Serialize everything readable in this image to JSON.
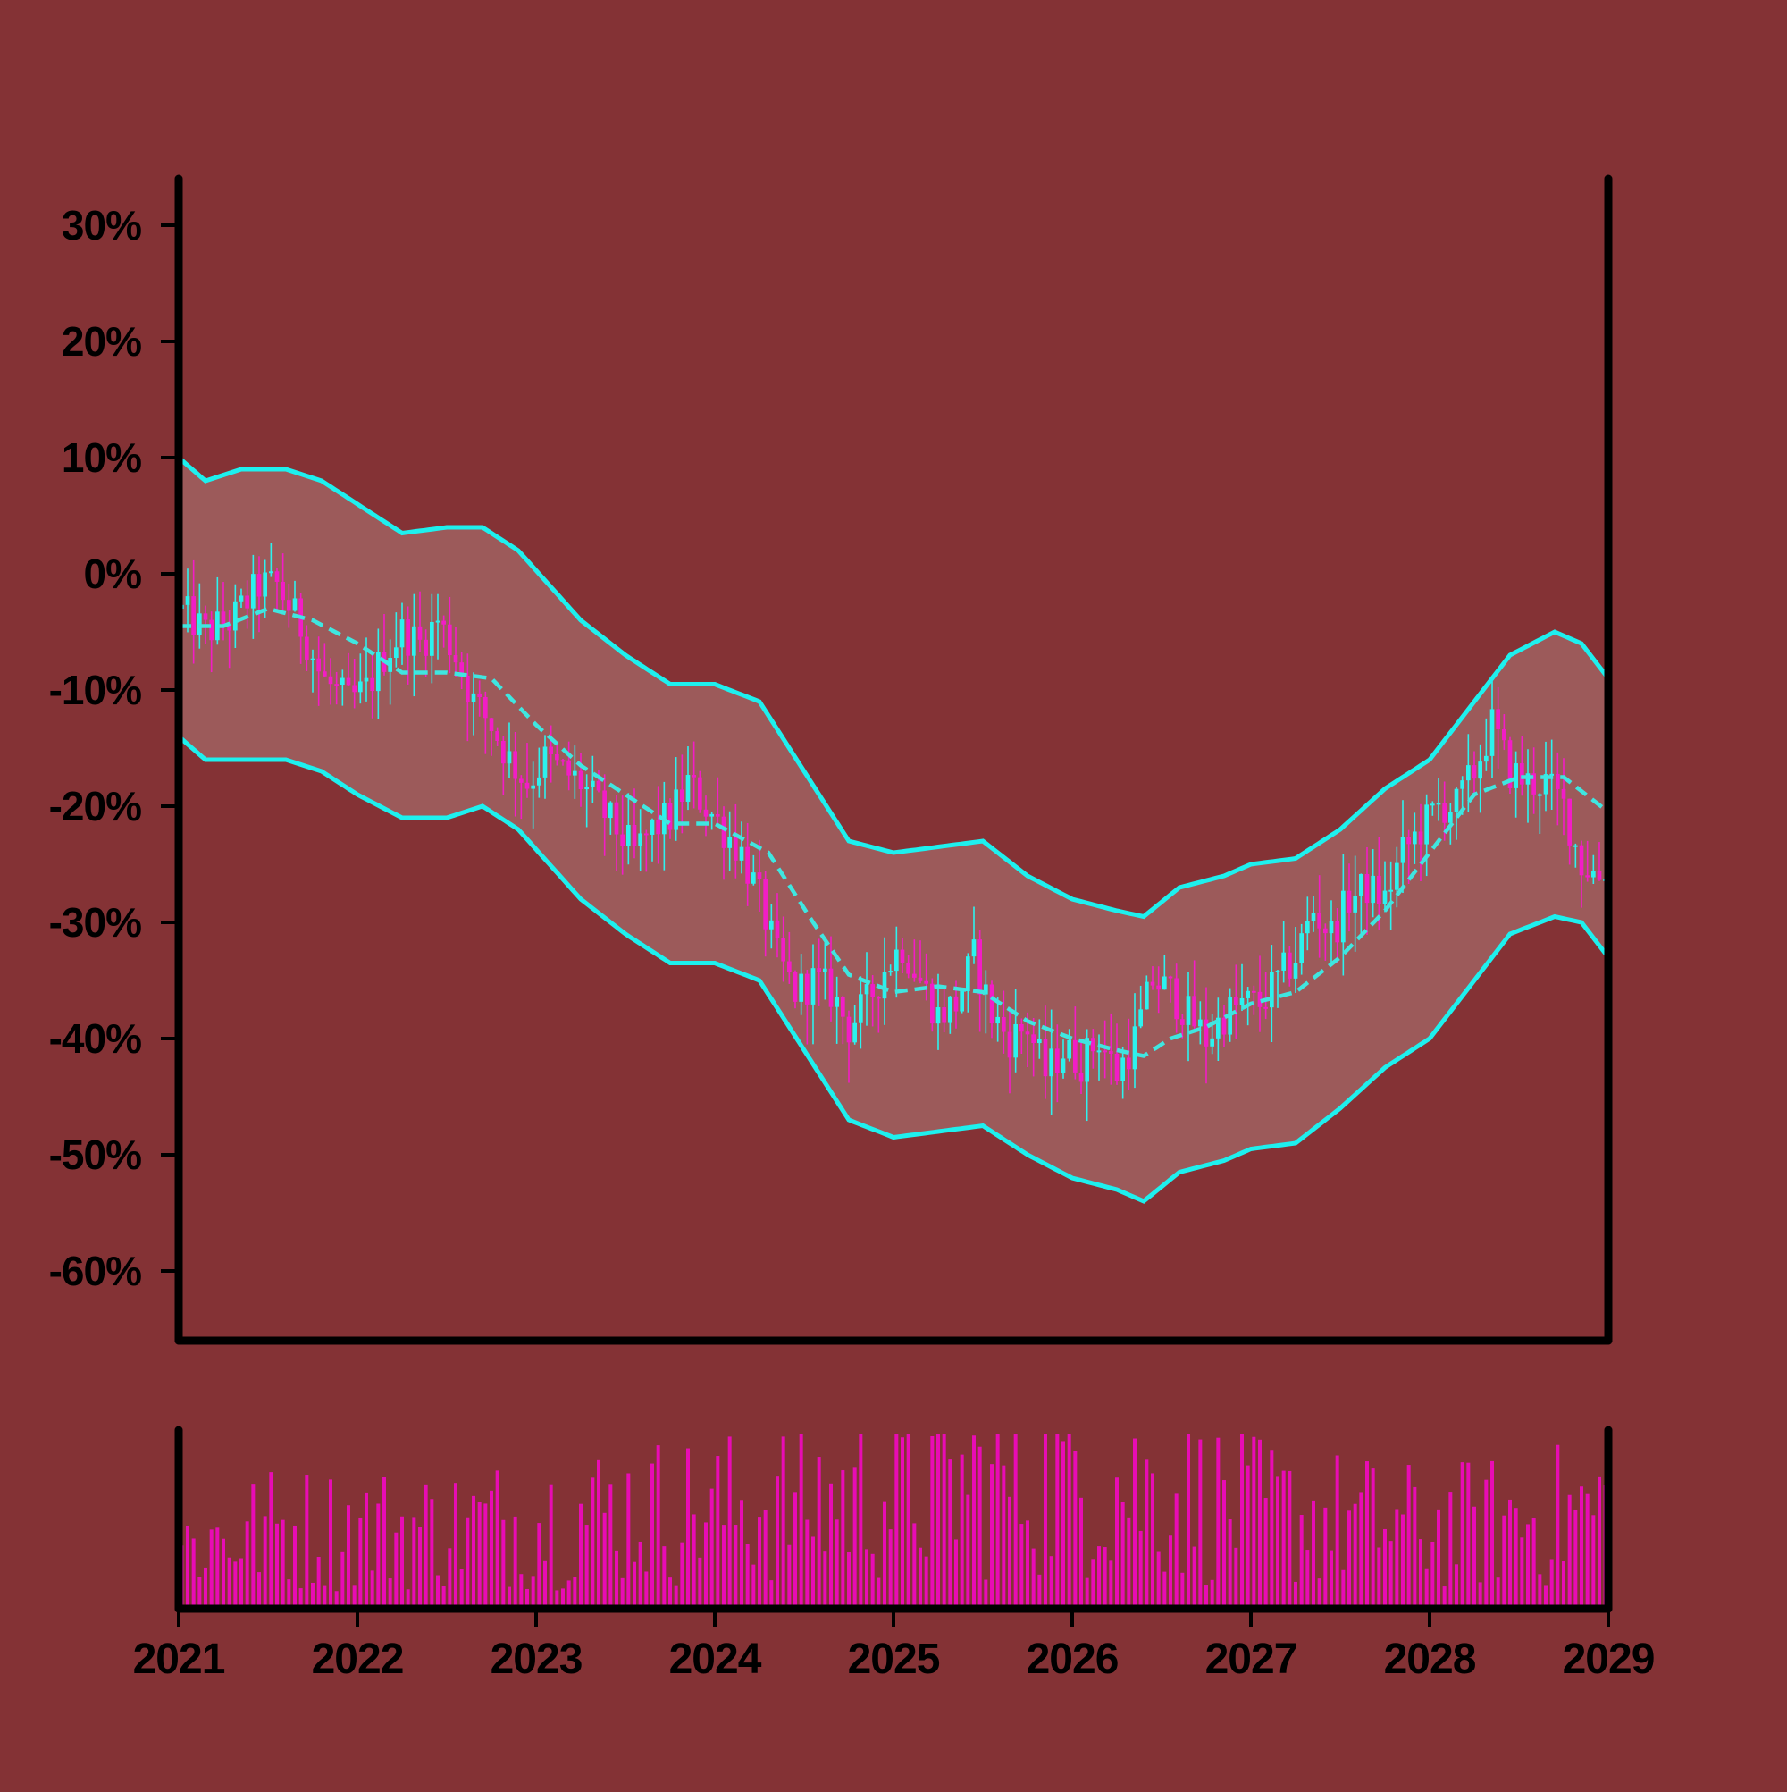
{
  "colors": {
    "background": "#843235",
    "band_fill": "#9c5a5a",
    "band_line": "#1ef0ee",
    "moving_average": "#3fe6e0",
    "candle_up": "#2cf2ee",
    "candle_down": "#f21dc6",
    "volume": "#e80cb4",
    "axis": "#000000"
  },
  "chart_data": [
    {
      "type": "candlestick",
      "title": "",
      "xlabel": "",
      "ylabel": "",
      "ylim": [
        -66,
        34
      ],
      "xlim": [
        2021,
        2029
      ],
      "grid": false,
      "y_ticks": [
        {
          "value": 30,
          "label": "30%"
        },
        {
          "value": 20,
          "label": "20%"
        },
        {
          "value": 10,
          "label": "10%"
        },
        {
          "value": 0,
          "label": "0%"
        },
        {
          "value": -10,
          "label": "-10%"
        },
        {
          "value": -20,
          "label": "-20%"
        },
        {
          "value": -30,
          "label": "-30%"
        },
        {
          "value": -40,
          "label": "-40%"
        },
        {
          "value": -50,
          "label": "-50%"
        },
        {
          "value": -60,
          "label": "-60%"
        }
      ],
      "close_series": [
        [
          2021.0,
          -3
        ],
        [
          2021.15,
          -5
        ],
        [
          2021.3,
          -4
        ],
        [
          2021.45,
          -1
        ],
        [
          2021.55,
          -1
        ],
        [
          2021.7,
          -5
        ],
        [
          2021.8,
          -9
        ],
        [
          2021.95,
          -11
        ],
        [
          2022.05,
          -10
        ],
        [
          2022.15,
          -7
        ],
        [
          2022.25,
          -5
        ],
        [
          2022.35,
          -6
        ],
        [
          2022.45,
          -4
        ],
        [
          2022.55,
          -7
        ],
        [
          2022.65,
          -11
        ],
        [
          2022.75,
          -13
        ],
        [
          2022.85,
          -16
        ],
        [
          2022.95,
          -18
        ],
        [
          2023.05,
          -16
        ],
        [
          2023.15,
          -17
        ],
        [
          2023.25,
          -18
        ],
        [
          2023.35,
          -20
        ],
        [
          2023.45,
          -22
        ],
        [
          2023.55,
          -24
        ],
        [
          2023.65,
          -22
        ],
        [
          2023.75,
          -21
        ],
        [
          2023.85,
          -18
        ],
        [
          2023.95,
          -20
        ],
        [
          2024.05,
          -22
        ],
        [
          2024.15,
          -24
        ],
        [
          2024.25,
          -28
        ],
        [
          2024.35,
          -33
        ],
        [
          2024.45,
          -36
        ],
        [
          2024.55,
          -35
        ],
        [
          2024.65,
          -36
        ],
        [
          2024.75,
          -39
        ],
        [
          2024.85,
          -37
        ],
        [
          2024.95,
          -34
        ],
        [
          2025.05,
          -32
        ],
        [
          2025.15,
          -35
        ],
        [
          2025.25,
          -38
        ],
        [
          2025.35,
          -37
        ],
        [
          2025.45,
          -33
        ],
        [
          2025.55,
          -38
        ],
        [
          2025.65,
          -40
        ],
        [
          2025.75,
          -39
        ],
        [
          2025.85,
          -43
        ],
        [
          2025.95,
          -41
        ],
        [
          2026.05,
          -42
        ],
        [
          2026.15,
          -40
        ],
        [
          2026.25,
          -43
        ],
        [
          2026.35,
          -40
        ],
        [
          2026.45,
          -35
        ],
        [
          2026.55,
          -36
        ],
        [
          2026.65,
          -38
        ],
        [
          2026.75,
          -40
        ],
        [
          2026.85,
          -38
        ],
        [
          2026.95,
          -37
        ],
        [
          2027.05,
          -37
        ],
        [
          2027.15,
          -35
        ],
        [
          2027.25,
          -33
        ],
        [
          2027.35,
          -29
        ],
        [
          2027.45,
          -31
        ],
        [
          2027.55,
          -28
        ],
        [
          2027.65,
          -27
        ],
        [
          2027.75,
          -28
        ],
        [
          2027.85,
          -24
        ],
        [
          2027.95,
          -22
        ],
        [
          2028.05,
          -20
        ],
        [
          2028.15,
          -20
        ],
        [
          2028.25,
          -17
        ],
        [
          2028.35,
          -13
        ],
        [
          2028.45,
          -17
        ],
        [
          2028.55,
          -18
        ],
        [
          2028.65,
          -18
        ],
        [
          2028.75,
          -20
        ],
        [
          2028.85,
          -25
        ],
        [
          2028.95,
          -26
        ],
        [
          2029.0,
          -25
        ]
      ],
      "moving_average": [
        [
          2021.0,
          -4.5
        ],
        [
          2021.25,
          -4.5
        ],
        [
          2021.5,
          -3.0
        ],
        [
          2021.75,
          -4.0
        ],
        [
          2022.0,
          -6.0
        ],
        [
          2022.25,
          -8.5
        ],
        [
          2022.5,
          -8.5
        ],
        [
          2022.75,
          -9.0
        ],
        [
          2023.0,
          -13.0
        ],
        [
          2023.25,
          -16.5
        ],
        [
          2023.5,
          -19.0
        ],
        [
          2023.75,
          -21.5
        ],
        [
          2024.0,
          -21.5
        ],
        [
          2024.3,
          -24.0
        ],
        [
          2024.55,
          -30.0
        ],
        [
          2024.75,
          -34.5
        ],
        [
          2025.0,
          -36.0
        ],
        [
          2025.25,
          -35.5
        ],
        [
          2025.5,
          -36.0
        ],
        [
          2025.75,
          -38.5
        ],
        [
          2026.0,
          -40.0
        ],
        [
          2026.25,
          -41.0
        ],
        [
          2026.4,
          -41.5
        ],
        [
          2026.55,
          -40.0
        ],
        [
          2026.75,
          -39.0
        ],
        [
          2027.0,
          -37.0
        ],
        [
          2027.25,
          -36.0
        ],
        [
          2027.5,
          -33.0
        ],
        [
          2027.75,
          -29.0
        ],
        [
          2028.0,
          -24.0
        ],
        [
          2028.25,
          -19.0
        ],
        [
          2028.5,
          -17.5
        ],
        [
          2028.75,
          -17.5
        ],
        [
          2029.0,
          -20.5
        ]
      ],
      "band_upper": [
        [
          2021.0,
          10
        ],
        [
          2021.15,
          8
        ],
        [
          2021.35,
          9
        ],
        [
          2021.6,
          9
        ],
        [
          2021.8,
          8
        ],
        [
          2022.0,
          6
        ],
        [
          2022.25,
          3.5
        ],
        [
          2022.5,
          4
        ],
        [
          2022.7,
          4
        ],
        [
          2022.9,
          2
        ],
        [
          2023.25,
          -4
        ],
        [
          2023.5,
          -7
        ],
        [
          2023.75,
          -9.5
        ],
        [
          2024.0,
          -9.5
        ],
        [
          2024.25,
          -11
        ],
        [
          2024.5,
          -17
        ],
        [
          2024.75,
          -23
        ],
        [
          2025.0,
          -24
        ],
        [
          2025.25,
          -23.5
        ],
        [
          2025.5,
          -23
        ],
        [
          2025.75,
          -26
        ],
        [
          2026.0,
          -28
        ],
        [
          2026.25,
          -29
        ],
        [
          2026.4,
          -29.5
        ],
        [
          2026.6,
          -27
        ],
        [
          2026.85,
          -26
        ],
        [
          2027.0,
          -25
        ],
        [
          2027.25,
          -24.5
        ],
        [
          2027.5,
          -22
        ],
        [
          2027.75,
          -18.5
        ],
        [
          2028.0,
          -16
        ],
        [
          2028.25,
          -11
        ],
        [
          2028.45,
          -7
        ],
        [
          2028.7,
          -5
        ],
        [
          2028.85,
          -6
        ],
        [
          2029.0,
          -9
        ]
      ],
      "band_lower": [
        [
          2021.0,
          -14
        ],
        [
          2021.15,
          -16
        ],
        [
          2021.35,
          -16
        ],
        [
          2021.6,
          -16
        ],
        [
          2021.8,
          -17
        ],
        [
          2022.0,
          -19
        ],
        [
          2022.25,
          -21
        ],
        [
          2022.5,
          -21
        ],
        [
          2022.7,
          -20
        ],
        [
          2022.9,
          -22
        ],
        [
          2023.25,
          -28
        ],
        [
          2023.5,
          -31
        ],
        [
          2023.75,
          -33.5
        ],
        [
          2024.0,
          -33.5
        ],
        [
          2024.25,
          -35
        ],
        [
          2024.5,
          -41
        ],
        [
          2024.75,
          -47
        ],
        [
          2025.0,
          -48.5
        ],
        [
          2025.25,
          -48
        ],
        [
          2025.5,
          -47.5
        ],
        [
          2025.75,
          -50
        ],
        [
          2026.0,
          -52
        ],
        [
          2026.25,
          -53
        ],
        [
          2026.4,
          -54
        ],
        [
          2026.6,
          -51.5
        ],
        [
          2026.85,
          -50.5
        ],
        [
          2027.0,
          -49.5
        ],
        [
          2027.25,
          -49
        ],
        [
          2027.5,
          -46
        ],
        [
          2027.75,
          -42.5
        ],
        [
          2028.0,
          -40
        ],
        [
          2028.25,
          -35
        ],
        [
          2028.45,
          -31
        ],
        [
          2028.7,
          -29.5
        ],
        [
          2028.85,
          -30
        ],
        [
          2029.0,
          -33
        ]
      ]
    },
    {
      "type": "bar",
      "title": "",
      "xlabel": "",
      "ylabel": "",
      "xlim": [
        2021,
        2029
      ],
      "x_ticks": [
        {
          "value": 2021,
          "label": "2021"
        },
        {
          "value": 2022,
          "label": "2022"
        },
        {
          "value": 2023,
          "label": "2023"
        },
        {
          "value": 2024,
          "label": "2024"
        },
        {
          "value": 2025,
          "label": "2025"
        },
        {
          "value": 2026,
          "label": "2026"
        },
        {
          "value": 2027,
          "label": "2027"
        },
        {
          "value": 2028,
          "label": "2028"
        },
        {
          "value": 2029,
          "label": "2029"
        }
      ],
      "volume_profile": [
        [
          2021.0,
          0.35
        ],
        [
          2021.5,
          0.45
        ],
        [
          2022.0,
          0.45
        ],
        [
          2022.5,
          0.45
        ],
        [
          2023.0,
          0.5
        ],
        [
          2023.5,
          0.55
        ],
        [
          2024.0,
          0.55
        ],
        [
          2024.5,
          0.6
        ],
        [
          2025.0,
          0.65
        ],
        [
          2025.5,
          0.7
        ],
        [
          2026.0,
          0.75
        ],
        [
          2026.5,
          0.65
        ],
        [
          2027.0,
          0.55
        ],
        [
          2027.5,
          0.5
        ],
        [
          2028.0,
          0.45
        ],
        [
          2028.5,
          0.5
        ],
        [
          2029.0,
          0.55
        ]
      ]
    }
  ]
}
